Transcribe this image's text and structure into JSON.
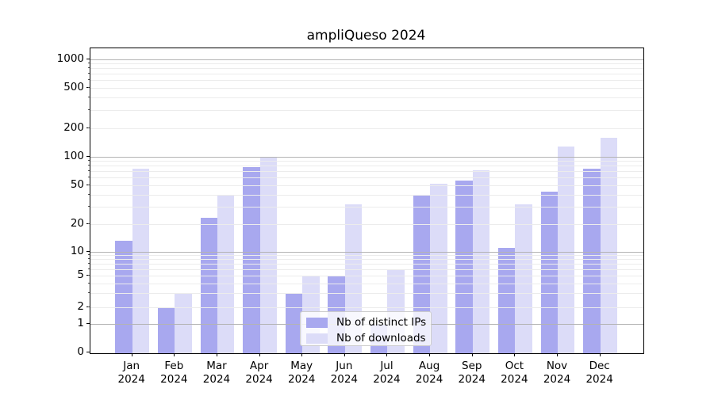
{
  "figure": {
    "title": "ampliQueso 2024"
  },
  "axis": {
    "y_tick_labels": [
      "0",
      "1",
      "2",
      "5",
      "10",
      "20",
      "50",
      "100",
      "200",
      "500",
      "1000"
    ],
    "x_months": [
      "Jan",
      "Feb",
      "Mar",
      "Apr",
      "May",
      "Jun",
      "Jul",
      "Aug",
      "Sep",
      "Oct",
      "Nov",
      "Dec"
    ],
    "x_year": "2024"
  },
  "legend": {
    "items": [
      {
        "label": "Nb of distinct IPs",
        "color": "#a8a8ef"
      },
      {
        "label": "Nb of downloads",
        "color": "#dcdcf8"
      }
    ]
  },
  "chart_data": {
    "type": "bar",
    "title": "ampliQueso 2024",
    "categories": [
      "Jan 2024",
      "Feb 2024",
      "Mar 2024",
      "Apr 2024",
      "May 2024",
      "Jun 2024",
      "Jul 2024",
      "Aug 2024",
      "Sep 2024",
      "Oct 2024",
      "Nov 2024",
      "Dec 2024"
    ],
    "series": [
      {
        "name": "Nb of distinct IPs",
        "color": "#a8a8ef",
        "values": [
          13,
          2,
          23,
          78,
          3,
          5,
          1,
          40,
          56,
          11,
          43,
          75
        ]
      },
      {
        "name": "Nb of downloads",
        "color": "#dcdcf8",
        "values": [
          75,
          3,
          40,
          97,
          5,
          32,
          6,
          52,
          72,
          32,
          128,
          157
        ]
      }
    ],
    "xlabel": "",
    "ylabel": "",
    "yscale": "symlog-like (linear 0-1, compressed log above)",
    "ylim": [
      0,
      1300
    ],
    "y_ticks": [
      0,
      1,
      2,
      5,
      10,
      20,
      50,
      100,
      200,
      500,
      1000
    ],
    "grid": "horizontal; dark major lines at 1,10,100,1000; faint minor lines at 2-9,20-90,200-900; gridlines drawn over bars",
    "legend_position": "inside, lower center-left",
    "bar_colors": {
      "ips": "#a8a8ef",
      "downloads": "#dcdcf8"
    },
    "gridline_major_color": "#b3b3b3",
    "gridline_minor_color": "#ececec"
  }
}
